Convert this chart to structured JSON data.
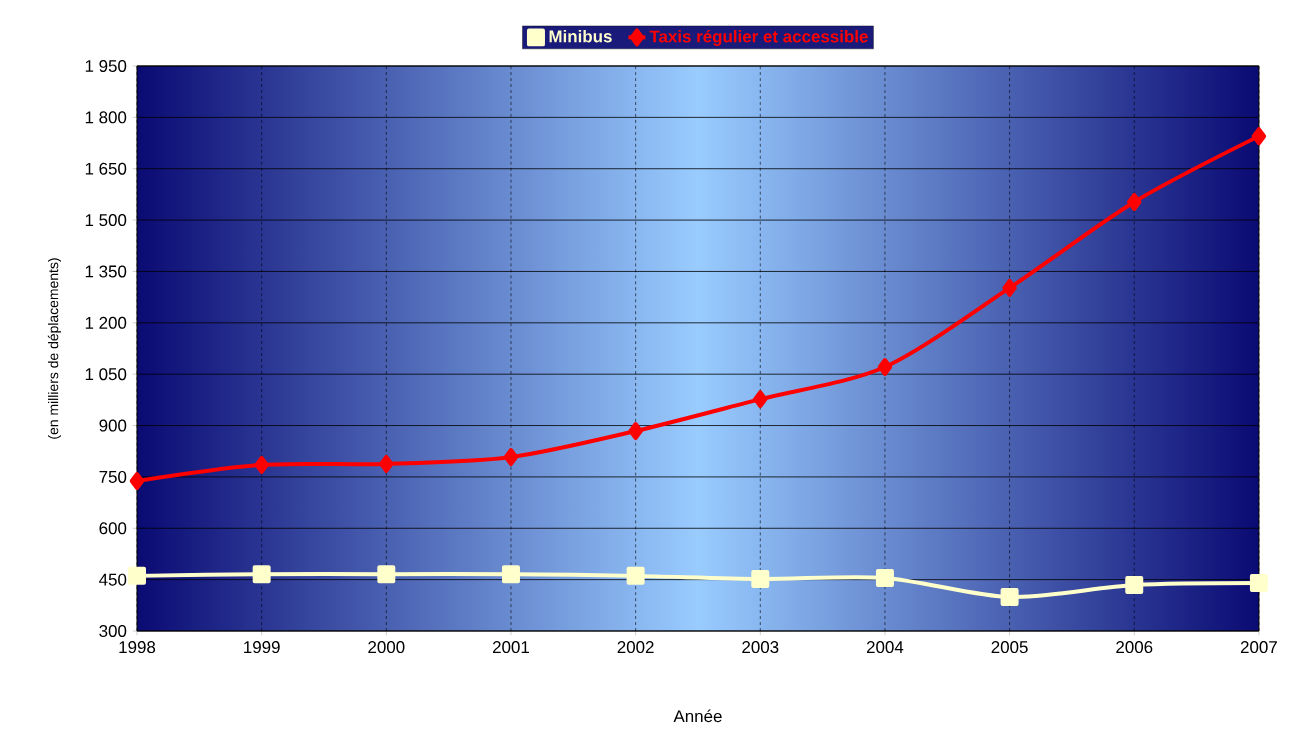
{
  "chart_data": {
    "type": "line",
    "xlabel": "Année",
    "ylabel": "(en milliers de déplacements)",
    "categories": [
      "1998",
      "1999",
      "2000",
      "2001",
      "2002",
      "2003",
      "2004",
      "2005",
      "2006",
      "2007"
    ],
    "series": [
      {
        "name": "Minibus",
        "color": "#ffffcc",
        "marker": "square",
        "values": [
          461,
          466,
          466,
          466,
          461,
          452,
          455,
          399,
          434,
          440
        ]
      },
      {
        "name": "Taxis régulier et accessible",
        "color": "#ff0000",
        "marker": "diamond",
        "values": [
          738,
          785,
          788,
          808,
          884,
          977,
          1071,
          1302,
          1553,
          1745
        ]
      }
    ],
    "ylim": [
      300,
      1950
    ],
    "yticks": [
      300,
      450,
      600,
      750,
      900,
      {
        "value": 1050,
        "label": "1 050"
      },
      {
        "value": 1200,
        "label": "1 200"
      },
      {
        "value": 1350,
        "label": "1 350"
      },
      {
        "value": 1500,
        "label": "1 500"
      },
      {
        "value": 1650,
        "label": "1 650"
      },
      {
        "value": 1800,
        "label": "1 800"
      },
      {
        "value": 1950,
        "label": "1 950"
      }
    ],
    "grid": true,
    "legend": "top",
    "line_style": "solid"
  }
}
